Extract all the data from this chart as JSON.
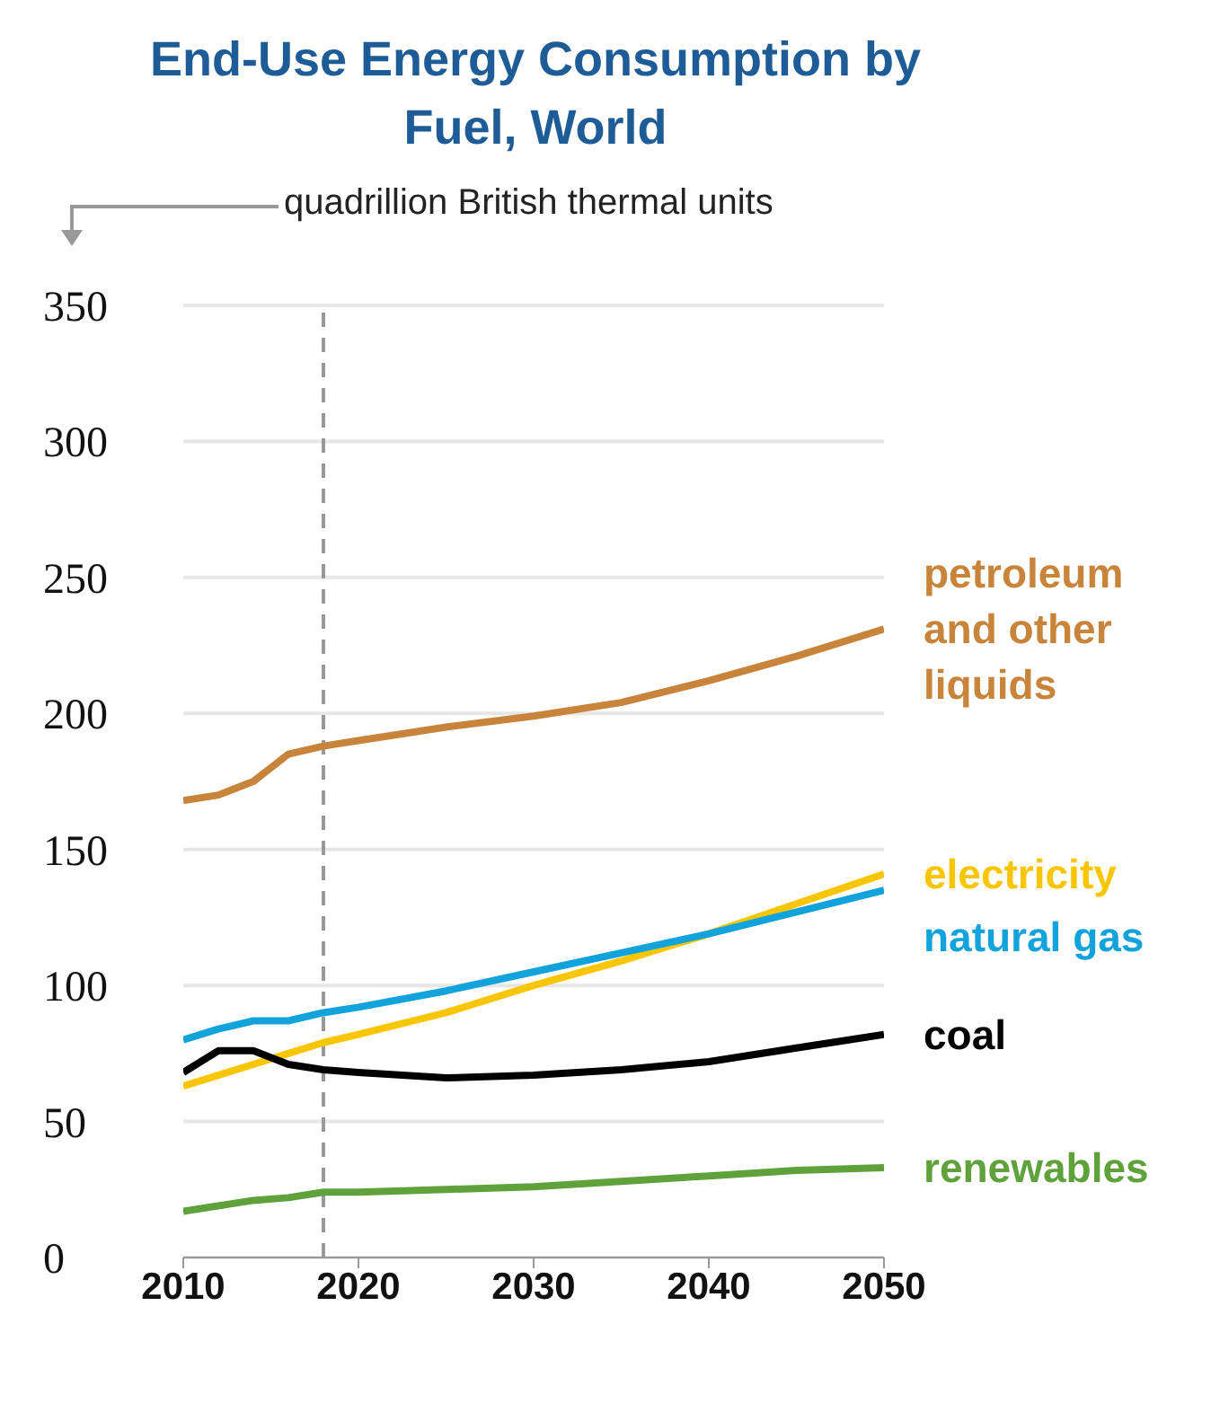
{
  "chart_data": {
    "type": "line",
    "title": "End-Use Energy Consumption by Fuel, World",
    "ylabel": "quadrillion British thermal units",
    "x": [
      2010,
      2012,
      2014,
      2016,
      2018,
      2020,
      2025,
      2030,
      2035,
      2040,
      2045,
      2050
    ],
    "series": [
      {
        "name": "petroleum and other liquids",
        "color": "#c8843a",
        "values": [
          168,
          170,
          175,
          185,
          188,
          190,
          195,
          199,
          204,
          212,
          221,
          231
        ]
      },
      {
        "name": "electricity",
        "color": "#f7c600",
        "values": [
          63,
          67,
          71,
          75,
          79,
          82,
          90,
          100,
          109,
          119,
          130,
          141
        ]
      },
      {
        "name": "natural gas",
        "color": "#12a3dc",
        "values": [
          80,
          84,
          87,
          87,
          90,
          92,
          98,
          105,
          112,
          119,
          127,
          135
        ]
      },
      {
        "name": "coal",
        "color": "#000000",
        "values": [
          68,
          76,
          76,
          71,
          69,
          68,
          66,
          67,
          69,
          72,
          77,
          82
        ]
      },
      {
        "name": "renewables",
        "color": "#5fa23c",
        "values": [
          17,
          19,
          21,
          22,
          24,
          24,
          25,
          26,
          28,
          30,
          32,
          33
        ]
      }
    ],
    "xlim": [
      2010,
      2050
    ],
    "xticks": [
      2010,
      2020,
      2030,
      2040,
      2050
    ],
    "ylim": [
      0,
      350
    ],
    "yticks": [
      0,
      50,
      100,
      150,
      200,
      250,
      300,
      350
    ],
    "grid": "y",
    "legend": false,
    "marker": "none",
    "line_style": "solid",
    "ref_lines": [
      {
        "axis": "x",
        "value": 2018,
        "color": "#999999",
        "line_style": "dashed"
      }
    ]
  }
}
